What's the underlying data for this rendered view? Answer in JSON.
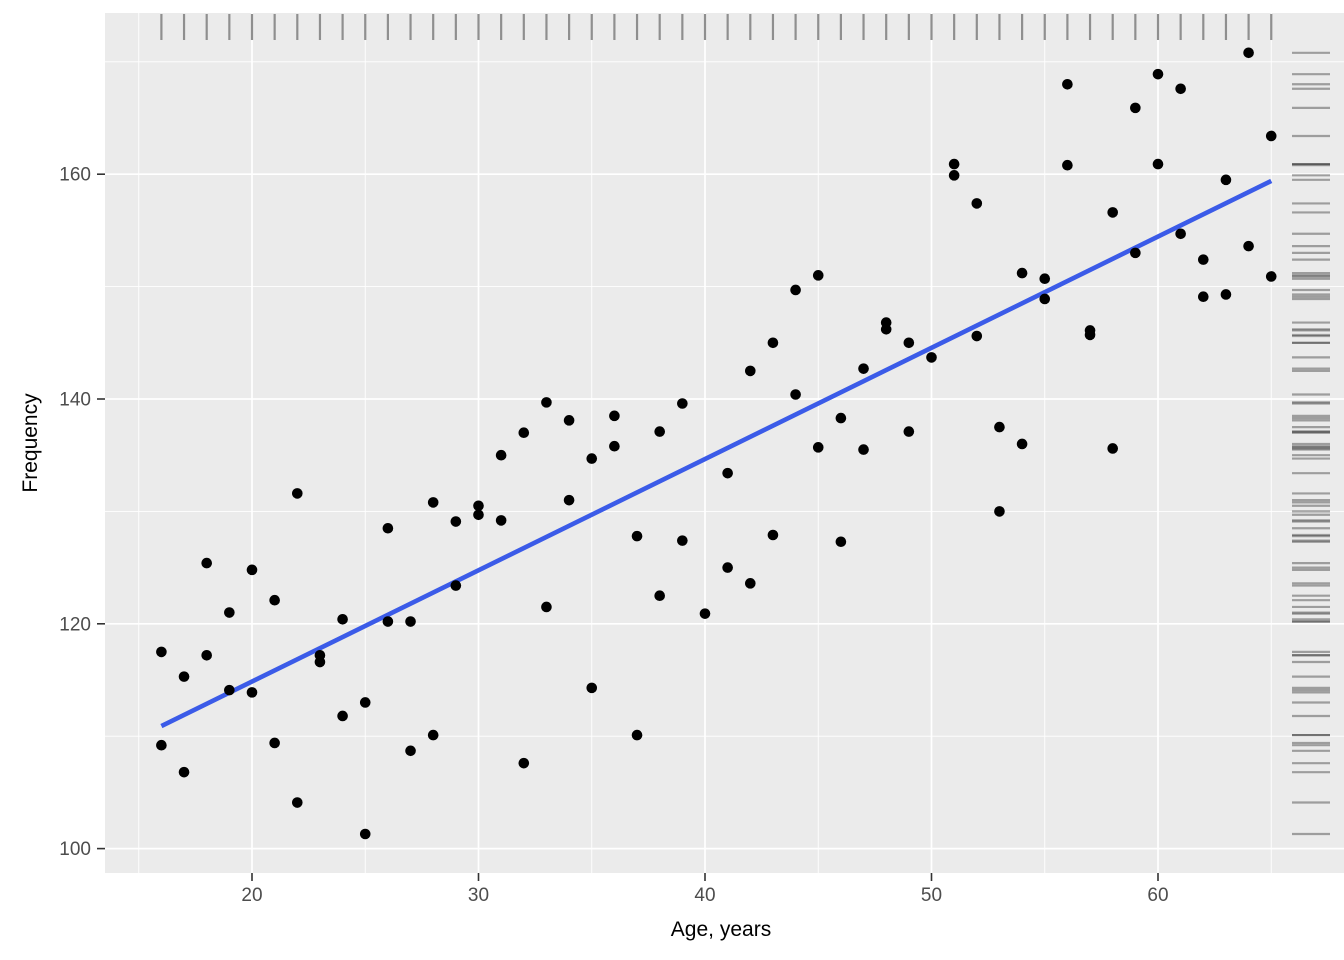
{
  "figure": {
    "background": "#FFFFFF",
    "panel_background": "#EBEBEB",
    "grid_color": "#FFFFFF",
    "tick_mark_color": "#333333",
    "tick_label_color": "#4D4D4D",
    "axis_title_color": "#000000",
    "point_color": "#000000",
    "smooth_line_color": "#3B5BE8",
    "rug_color_top": "#8F8F8F",
    "rug_color_right": "rgba(51,51,51,0.42)"
  },
  "chart_data": {
    "type": "scatter",
    "title": "",
    "xlabel": "Age, years",
    "ylabel": "Frequency",
    "x_ticks": [
      20,
      30,
      40,
      50,
      60
    ],
    "y_ticks": [
      100,
      120,
      140,
      160
    ],
    "x_minor": [
      15,
      25,
      35,
      45,
      55,
      65
    ],
    "y_minor": [
      110,
      130,
      150,
      170
    ],
    "xlim": [
      13.5,
      68.2
    ],
    "ylim": [
      97.8,
      174.4
    ],
    "grid": true,
    "legend": "none",
    "rug_sides": "top-right",
    "points": [
      [
        16,
        117.5
      ],
      [
        16,
        109.2
      ],
      [
        17,
        115.3
      ],
      [
        17,
        106.8
      ],
      [
        18,
        125.4
      ],
      [
        18,
        117.2
      ],
      [
        19,
        121.0
      ],
      [
        19,
        114.1
      ],
      [
        20,
        124.8
      ],
      [
        20,
        113.9
      ],
      [
        21,
        122.1
      ],
      [
        21,
        109.4
      ],
      [
        22,
        131.6
      ],
      [
        22,
        104.1
      ],
      [
        23,
        117.2
      ],
      [
        23,
        116.6
      ],
      [
        24,
        120.4
      ],
      [
        24,
        111.8
      ],
      [
        25,
        113.0
      ],
      [
        25,
        101.3
      ],
      [
        26,
        128.5
      ],
      [
        26,
        120.2
      ],
      [
        27,
        120.2
      ],
      [
        27,
        108.7
      ],
      [
        28,
        130.8
      ],
      [
        28,
        110.1
      ],
      [
        29,
        129.1
      ],
      [
        29,
        123.4
      ],
      [
        30,
        130.5
      ],
      [
        30,
        129.7
      ],
      [
        31,
        135.0
      ],
      [
        31,
        129.2
      ],
      [
        32,
        137.0
      ],
      [
        32,
        107.6
      ],
      [
        33,
        139.7
      ],
      [
        33,
        121.5
      ],
      [
        34,
        138.1
      ],
      [
        34,
        131.0
      ],
      [
        35,
        134.7
      ],
      [
        35,
        114.3
      ],
      [
        36,
        138.5
      ],
      [
        36,
        135.8
      ],
      [
        37,
        127.8
      ],
      [
        37,
        110.1
      ],
      [
        38,
        137.1
      ],
      [
        38,
        122.5
      ],
      [
        39,
        139.6
      ],
      [
        39,
        127.4
      ],
      [
        40,
        120.9
      ],
      [
        41,
        133.4
      ],
      [
        41,
        125.0
      ],
      [
        42,
        142.5
      ],
      [
        42,
        123.6
      ],
      [
        43,
        145.0
      ],
      [
        43,
        127.9
      ],
      [
        44,
        149.7
      ],
      [
        44,
        140.4
      ],
      [
        45,
        151.0
      ],
      [
        45,
        135.7
      ],
      [
        46,
        138.3
      ],
      [
        46,
        127.3
      ],
      [
        47,
        142.7
      ],
      [
        47,
        135.5
      ],
      [
        48,
        146.8
      ],
      [
        48,
        146.2
      ],
      [
        49,
        145.0
      ],
      [
        49,
        137.1
      ],
      [
        50,
        143.7
      ],
      [
        51,
        160.9
      ],
      [
        51,
        159.9
      ],
      [
        52,
        157.4
      ],
      [
        52,
        145.6
      ],
      [
        53,
        137.5
      ],
      [
        53,
        130.0
      ],
      [
        54,
        151.2
      ],
      [
        54,
        136.0
      ],
      [
        55,
        150.7
      ],
      [
        55,
        148.9
      ],
      [
        56,
        168.0
      ],
      [
        56,
        160.8
      ],
      [
        57,
        146.1
      ],
      [
        57,
        145.7
      ],
      [
        58,
        156.6
      ],
      [
        58,
        135.6
      ],
      [
        59,
        165.9
      ],
      [
        59,
        153.0
      ],
      [
        60,
        168.9
      ],
      [
        60,
        160.9
      ],
      [
        61,
        167.6
      ],
      [
        61,
        154.7
      ],
      [
        62,
        152.4
      ],
      [
        62,
        149.1
      ],
      [
        63,
        159.5
      ],
      [
        63,
        149.3
      ],
      [
        64,
        170.8
      ],
      [
        64,
        153.6
      ],
      [
        65,
        163.4
      ],
      [
        65,
        150.9
      ]
    ],
    "regression_line": {
      "x1": 16,
      "y1": 110.9,
      "x2": 65,
      "y2": 159.4
    }
  }
}
